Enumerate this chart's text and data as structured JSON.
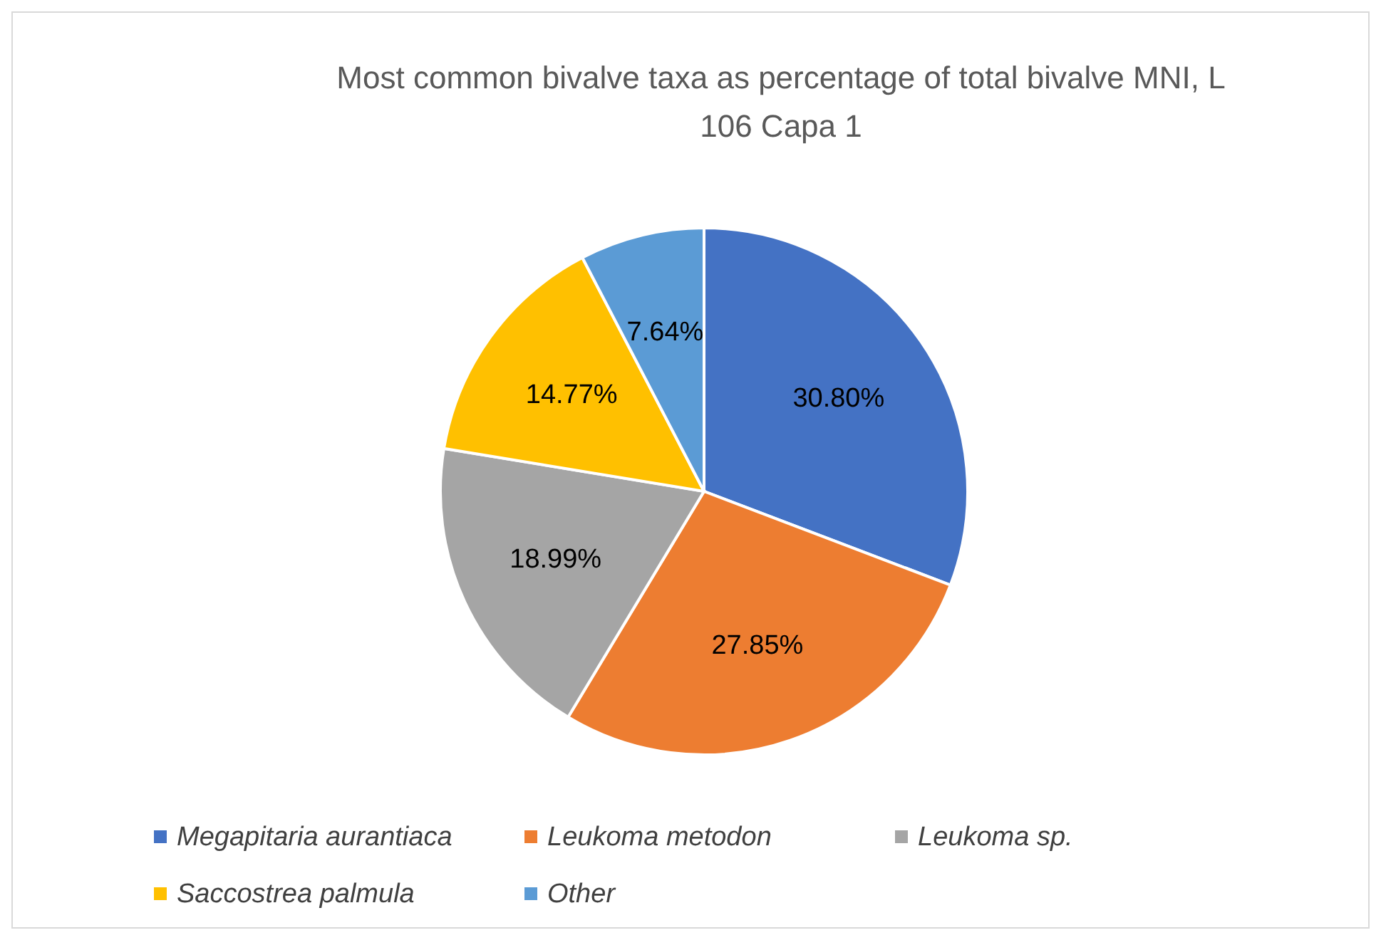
{
  "chart_data": {
    "type": "pie",
    "title": "Most common bivalve taxa as percentage of total bivalve MNI, L 106 Capa 1",
    "categories": [
      "Megapitaria aurantiaca",
      "Leukoma metodon",
      "Leukoma sp.",
      "Saccostrea palmula",
      "Other"
    ],
    "values": [
      30.8,
      27.85,
      18.99,
      14.77,
      7.64
    ],
    "colors": [
      "#4472c4",
      "#ed7d31",
      "#a5a5a5",
      "#ffc000",
      "#5b9bd5"
    ],
    "value_labels": [
      "30.80%",
      "27.85%",
      "18.99%",
      "14.77%",
      "7.64%"
    ],
    "legend": "bottom"
  }
}
